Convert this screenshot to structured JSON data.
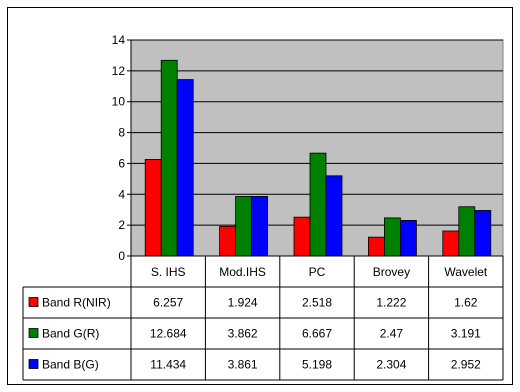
{
  "chart_data": {
    "type": "bar",
    "title": "",
    "xlabel": "",
    "ylabel": "",
    "ylim": [
      0,
      14
    ],
    "yticks": [
      "0",
      "2",
      "4",
      "6",
      "8",
      "10",
      "12",
      "14"
    ],
    "grid": true,
    "legend": "data-table-left",
    "categories": [
      "S. IHS",
      "Mod.IHS",
      "PC",
      "Brovey",
      "Wavelet"
    ],
    "series": [
      {
        "name": "Band R(NIR)",
        "color": "#ff0000",
        "values": [
          6.257,
          1.924,
          2.518,
          1.222,
          1.62
        ],
        "labels": [
          "6.257",
          "1.924",
          "2.518",
          "1.222",
          "1.62"
        ]
      },
      {
        "name": "Band G(R)",
        "color": "#008000",
        "values": [
          12.684,
          3.862,
          6.667,
          2.47,
          3.191
        ],
        "labels": [
          "12.684",
          "3.862",
          "6.667",
          "2.47",
          "3.191"
        ]
      },
      {
        "name": "Band B(G)",
        "color": "#0000ff",
        "values": [
          11.434,
          3.861,
          5.198,
          2.304,
          2.952
        ],
        "labels": [
          "11.434",
          "3.861",
          "5.198",
          "2.304",
          "2.952"
        ]
      }
    ],
    "plot_background": "#c0c0c0"
  }
}
